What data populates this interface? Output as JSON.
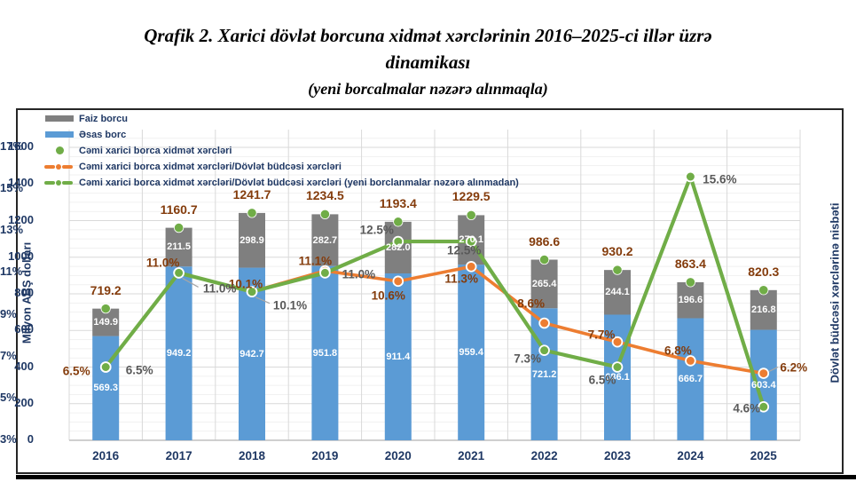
{
  "title": {
    "line1": "Qrafik 2. Xarici dövlət borcuna xidmət xərclərinin 2016–2025-ci illər üzrə",
    "line2": "dinamikası",
    "line3": "(yeni borcalmalar nəzərə alınmaqla)"
  },
  "colors": {
    "blue": "#5B9BD5",
    "gray": "#7F7F7F",
    "green": "#70AD47",
    "orange": "#ED7D31",
    "brown_label": "#843C0C",
    "gray_label": "#595959",
    "navy_text": "#1F3864"
  },
  "legend": {
    "items": [
      {
        "label": "Faiz borcu",
        "swatch": "bar",
        "color": "#7F7F7F"
      },
      {
        "label": "Əsas borc",
        "swatch": "bar",
        "color": "#5B9BD5"
      },
      {
        "label": "Cəmi xarici borca xidmət xərcləri",
        "swatch": "dot",
        "color": "#70AD47"
      },
      {
        "label": "Cəmi xarici borca xidmət xərcləri/Dövlət büdcəsi xərcləri",
        "swatch": "line-dot",
        "color": "#ED7D31"
      },
      {
        "label": "Cəmi xarici borca xidmət xərcləri/Dövlət büdcəsi xərcləri (yeni borclanmalar nəzərə alınmadan)",
        "swatch": "line-dot",
        "color": "#70AD47"
      }
    ]
  },
  "chart_data": {
    "type": "combo: stacked bar + line",
    "categories": [
      "2016",
      "2017",
      "2018",
      "2019",
      "2020",
      "2021",
      "2022",
      "2023",
      "2024",
      "2025"
    ],
    "series": [
      {
        "name": "Əsas borc",
        "type": "bar",
        "stacked": true,
        "color": "#5B9BD5",
        "values": [
          569.3,
          949.2,
          942.7,
          951.8,
          911.4,
          959.4,
          721.2,
          686.1,
          666.7,
          603.4
        ]
      },
      {
        "name": "Faiz borcu",
        "type": "bar",
        "stacked": true,
        "color": "#7F7F7F",
        "values": [
          149.9,
          211.5,
          298.9,
          282.7,
          282.0,
          270.1,
          265.4,
          244.1,
          196.6,
          216.8
        ]
      },
      {
        "name": "Cəmi xarici borca xidmət xərcləri",
        "type": "point",
        "axis": "left",
        "color": "#70AD47",
        "values": [
          719.2,
          1160.7,
          1241.7,
          1234.5,
          1193.4,
          1229.5,
          986.6,
          930.2,
          863.4,
          820.3
        ]
      },
      {
        "name": "Cəmi xarici borca xidmət xərcləri/Dövlət büdcəsi xərcləri",
        "type": "line",
        "axis": "right",
        "color": "#ED7D31",
        "values": [
          6.5,
          11.0,
          10.1,
          11.1,
          10.6,
          11.3,
          8.6,
          7.7,
          6.8,
          6.2
        ]
      },
      {
        "name": "Cəmi xarici borca xidmət xərcləri/Dövlət büdcəsi xərcləri (yeni borclanmalar nəzərə alınmadan)",
        "type": "line",
        "axis": "right",
        "color": "#70AD47",
        "values": [
          6.5,
          11.0,
          10.1,
          11.0,
          12.5,
          12.5,
          7.3,
          6.5,
          15.6,
          4.6
        ]
      }
    ],
    "left_axis": {
      "title": "Milyon ABŞ dolları",
      "min": 0,
      "max": 1600,
      "step": 200,
      "ticks": [
        "0",
        "200",
        "400",
        "600",
        "800",
        "1000",
        "1200",
        "1400",
        "1600"
      ]
    },
    "right_axis": {
      "title": "Dövlət büdcəsi xərclərinə nisbəti",
      "min": 3,
      "max": 17,
      "step": 2,
      "ticks": [
        "3%",
        "5%",
        "7%",
        "9%",
        "11%",
        "13%",
        "15%",
        "17%"
      ]
    },
    "grid": "major + minor horizontal, vertical category separators",
    "legend_position": "top-left inside plot"
  }
}
